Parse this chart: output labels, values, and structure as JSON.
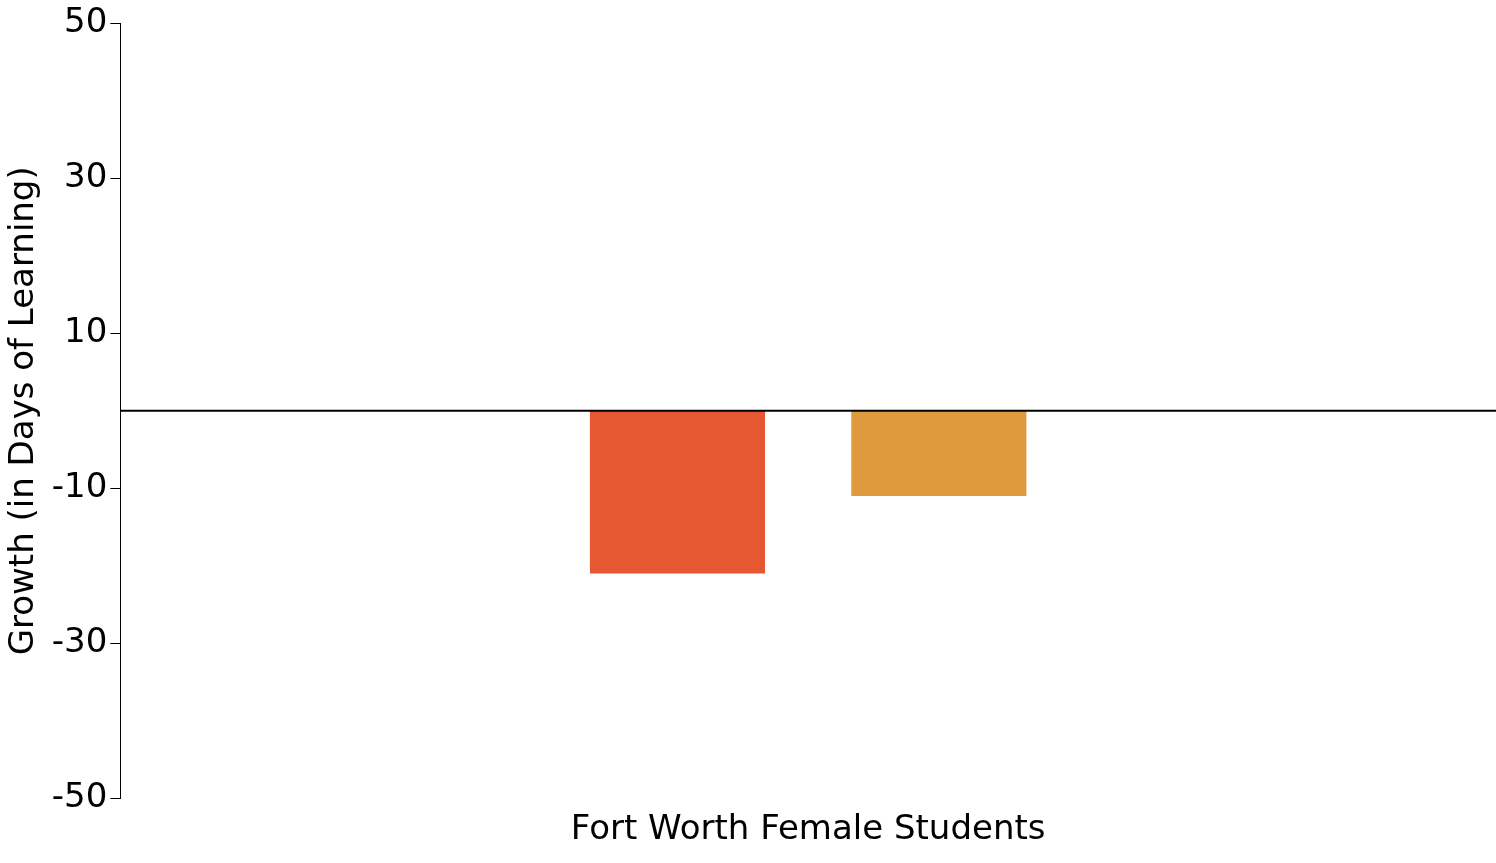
{
  "chart_data": {
    "type": "bar",
    "ylabel": "Growth (in Days of Learning)",
    "categories": [
      "Fort Worth Female Students"
    ],
    "series": [
      {
        "color": "#e65831",
        "values": [
          -21
        ]
      },
      {
        "color": "#df9a3e",
        "values": [
          -11
        ]
      }
    ],
    "ylim": [
      -50,
      50
    ],
    "yticks": [
      -50,
      -30,
      -10,
      10,
      30,
      50
    ],
    "grid": false,
    "legend": false,
    "ref_lines": [
      {
        "axis": "y",
        "value": 0,
        "color": "#000000"
      }
    ]
  }
}
